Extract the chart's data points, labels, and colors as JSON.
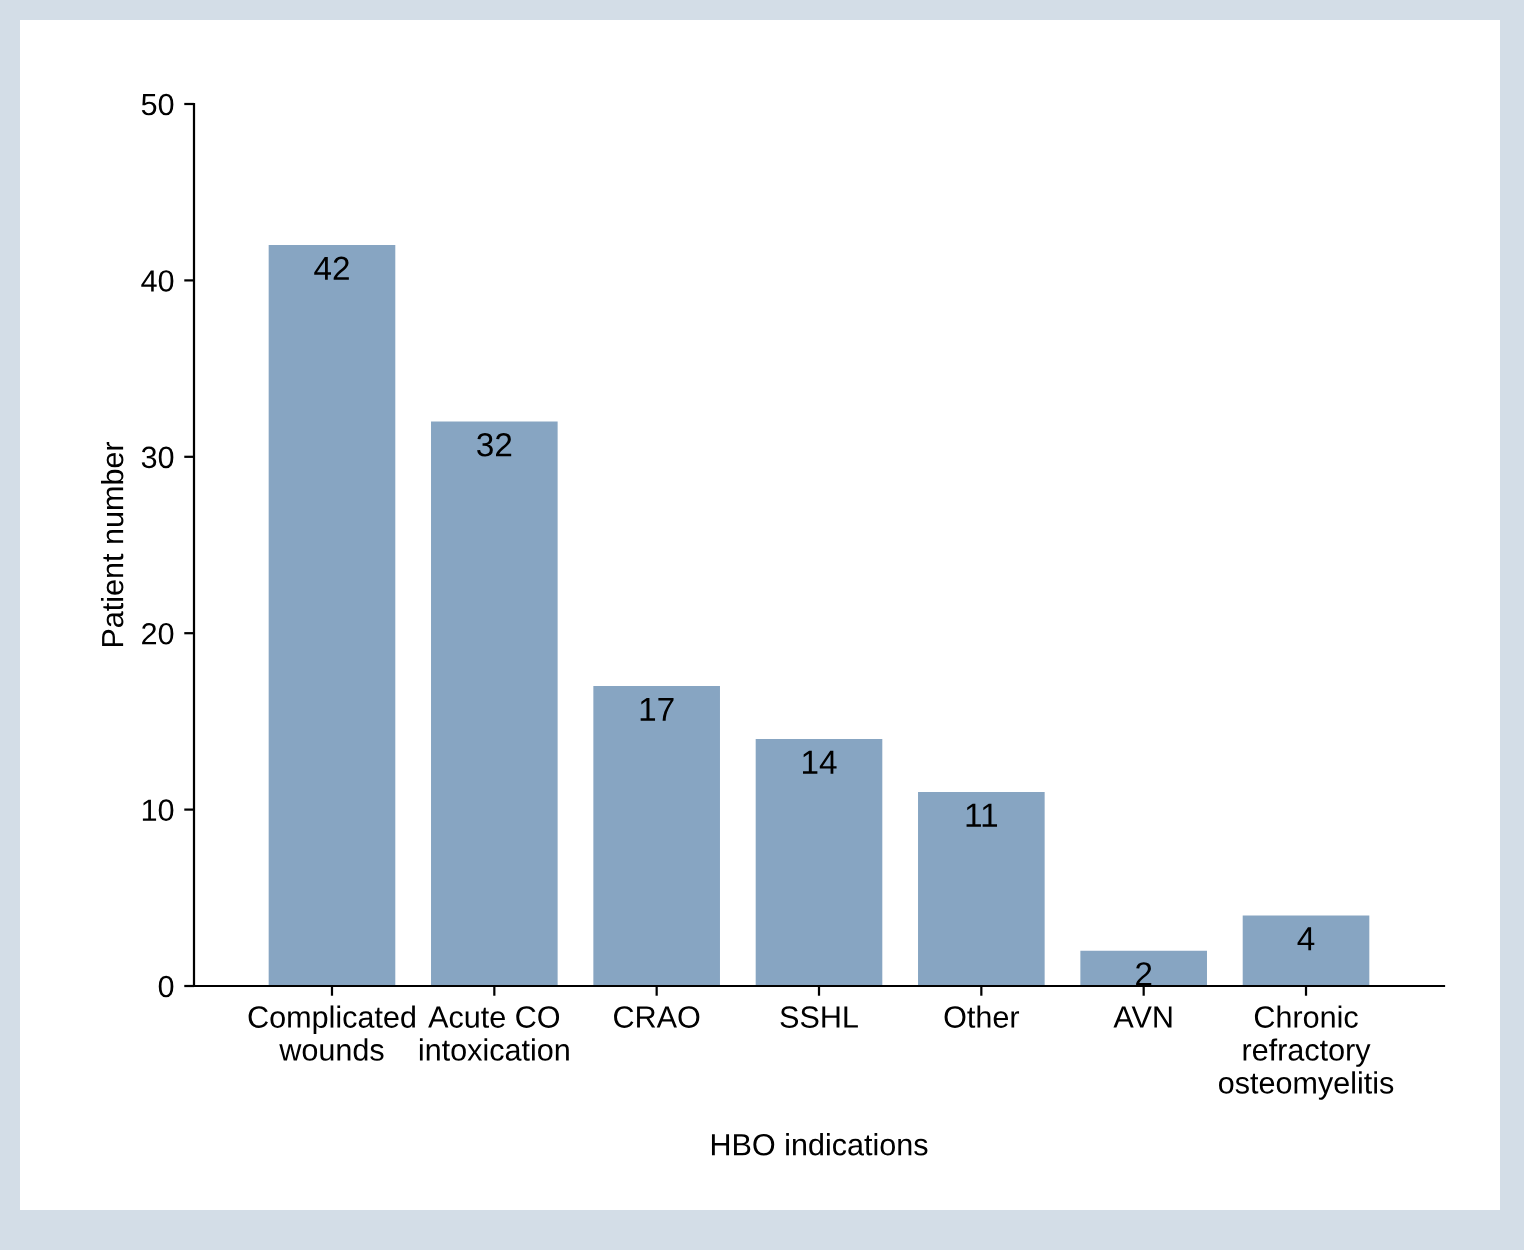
{
  "chart_data": {
    "type": "bar",
    "xlabel": "HBO indications",
    "ylabel": "Patient number",
    "categories": [
      "Complicated\nwounds",
      "Acute CO\nintoxication",
      "CRAO",
      "SSHL",
      "Other",
      "AVN",
      "Chronic\nrefractory\nosteomyelitis"
    ],
    "values": [
      42,
      32,
      17,
      14,
      11,
      2,
      4
    ],
    "color": "#87a5c2",
    "ylim": [
      0,
      50
    ],
    "yticks": [
      0,
      10,
      20,
      30,
      40,
      50
    ],
    "grid": false,
    "legend": false,
    "data_labels": true
  }
}
